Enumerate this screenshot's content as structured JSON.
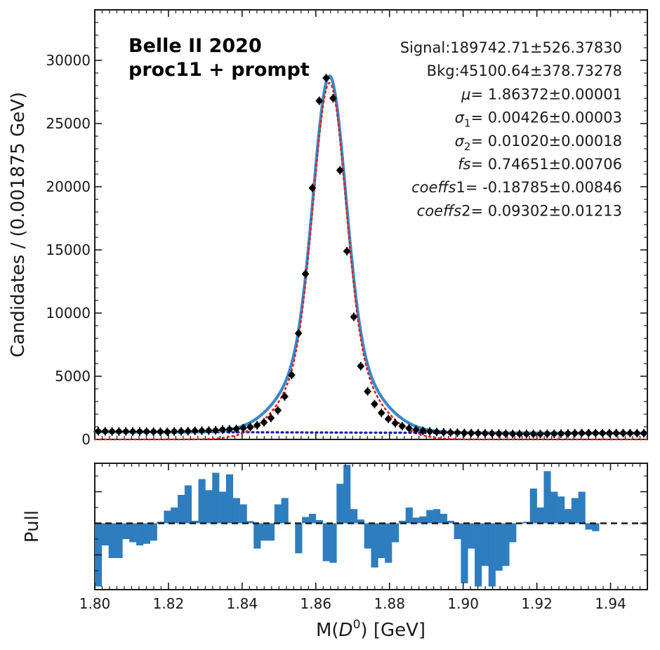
{
  "chart_data": [
    {
      "type": "scatter",
      "panel": "fit",
      "ylabel": "Candidates / (0.001875 GeV)",
      "xlim": [
        1.8,
        1.95
      ],
      "ylim": [
        0,
        34000
      ],
      "y_ticks": [
        0,
        5000,
        10000,
        15000,
        20000,
        25000,
        30000
      ],
      "experiment_label": [
        "Belle II 2020",
        "proc11 + prompt"
      ],
      "fit_parameters": [
        {
          "sym": "Signal",
          "italic": false,
          "sub": "",
          "value": ":189742.71±526.37830"
        },
        {
          "sym": "Bkg",
          "italic": false,
          "sub": "",
          "value": ":45100.64±378.73278"
        },
        {
          "sym": "μ",
          "italic": true,
          "sub": "",
          "value": "= 1.86372±0.00001"
        },
        {
          "sym": "σ",
          "italic": true,
          "sub": "1",
          "value": "= 0.00426±0.00003"
        },
        {
          "sym": "σ",
          "italic": true,
          "sub": "2",
          "value": "= 0.01020±0.00018"
        },
        {
          "sym": "fs",
          "italic": true,
          "sub": "",
          "value": "= 0.74651±0.00706"
        },
        {
          "sym": "coeffs",
          "italic": true,
          "sub": "",
          "value": "1= -0.18785±0.00846"
        },
        {
          "sym": "coeffs",
          "italic": true,
          "sub": "",
          "value": "2= 0.09302±0.01213"
        }
      ],
      "data_points": {
        "x": [
          1.80094,
          1.80281,
          1.80469,
          1.80656,
          1.80844,
          1.81031,
          1.81219,
          1.81406,
          1.81594,
          1.81781,
          1.81969,
          1.82156,
          1.82344,
          1.82531,
          1.82719,
          1.82906,
          1.83094,
          1.83281,
          1.83469,
          1.83656,
          1.83844,
          1.84031,
          1.84219,
          1.84406,
          1.84594,
          1.84781,
          1.84969,
          1.85156,
          1.85344,
          1.85531,
          1.85719,
          1.85906,
          1.86094,
          1.86281,
          1.86469,
          1.86656,
          1.86844,
          1.87031,
          1.87219,
          1.87406,
          1.87594,
          1.87781,
          1.87969,
          1.88156,
          1.88344,
          1.88531,
          1.88719,
          1.88906,
          1.89094,
          1.89281,
          1.89469,
          1.89656,
          1.89844,
          1.90031,
          1.90219,
          1.90406,
          1.90594,
          1.90781,
          1.90969,
          1.91156,
          1.91344,
          1.91531,
          1.91719,
          1.91906,
          1.92094,
          1.92281,
          1.92469,
          1.92656,
          1.92844,
          1.93031,
          1.93219,
          1.93406,
          1.93594,
          1.93781,
          1.93969,
          1.94156,
          1.94344,
          1.94531,
          1.94719,
          1.94906
        ],
        "y": [
          640,
          640,
          630,
          630,
          630,
          620,
          620,
          620,
          610,
          610,
          600,
          630,
          640,
          650,
          680,
          690,
          700,
          720,
          780,
          800,
          830,
          900,
          980,
          1120,
          1350,
          1700,
          2300,
          3400,
          5100,
          8400,
          13100,
          19900,
          26800,
          28600,
          27000,
          21300,
          14900,
          9700,
          5800,
          3800,
          2800,
          2100,
          1620,
          1280,
          1050,
          880,
          760,
          680,
          630,
          590,
          560,
          540,
          530,
          510,
          500,
          490,
          480,
          470,
          460,
          450,
          440,
          430,
          430,
          430,
          430,
          440,
          450,
          460,
          470,
          490,
          500,
          500,
          500,
          500,
          500,
          500,
          500,
          500,
          490,
          490
        ]
      },
      "curves": [
        {
          "name": "total fit",
          "color": "#3b88c8",
          "style": "solid"
        },
        {
          "name": "signal",
          "color": "#e02020",
          "style": "dotted"
        },
        {
          "name": "background",
          "color": "#1a1aa8",
          "style": "dotted"
        }
      ],
      "signal_fit": {
        "mu": 1.86372,
        "sigma1": 0.00426,
        "sigma2": 0.0102,
        "fs": 0.74651
      },
      "background_level": 540
    },
    {
      "type": "bar",
      "panel": "pull",
      "ylabel": "Pull",
      "xlabel_prefix": "M(",
      "xlabel_symbol": "D",
      "xlabel_superscript": "0",
      "xlabel_suffix": ") [GeV]",
      "xlim": [
        1.8,
        1.95
      ],
      "ylim": [
        -2.1,
        1.9
      ],
      "x_ticks": [
        "1.80",
        "1.82",
        "1.84",
        "1.86",
        "1.88",
        "1.90",
        "1.92",
        "1.94"
      ],
      "bar_color": "#2e7dbf",
      "bin_width": 0.001875,
      "bin_start": 1.8,
      "values": [
        -2.0,
        -0.7,
        -1.1,
        -1.1,
        -0.5,
        -0.6,
        -0.7,
        -0.65,
        -0.55,
        0.05,
        0.4,
        0.5,
        0.9,
        1.2,
        0.08,
        1.4,
        1.05,
        1.6,
        1.0,
        1.55,
        0.8,
        0.6,
        0.07,
        -0.8,
        -0.55,
        -0.55,
        0.6,
        0.8,
        0.0,
        -0.95,
        0.2,
        0.3,
        0.1,
        -1.2,
        -1.25,
        1.25,
        1.85,
        0.45,
        0.12,
        -0.8,
        -1.4,
        -1.1,
        -1.25,
        -0.6,
        0.08,
        0.5,
        0.18,
        0.22,
        0.42,
        0.45,
        0.3,
        0.08,
        -0.5,
        -1.9,
        -0.8,
        -2.0,
        -1.35,
        -2.0,
        -1.5,
        -1.35,
        -0.6,
        0.02,
        0.05,
        1.1,
        0.5,
        1.65,
        1.0,
        0.85,
        0.45,
        0.8,
        1.0,
        -0.2,
        -0.25
      ]
    }
  ]
}
